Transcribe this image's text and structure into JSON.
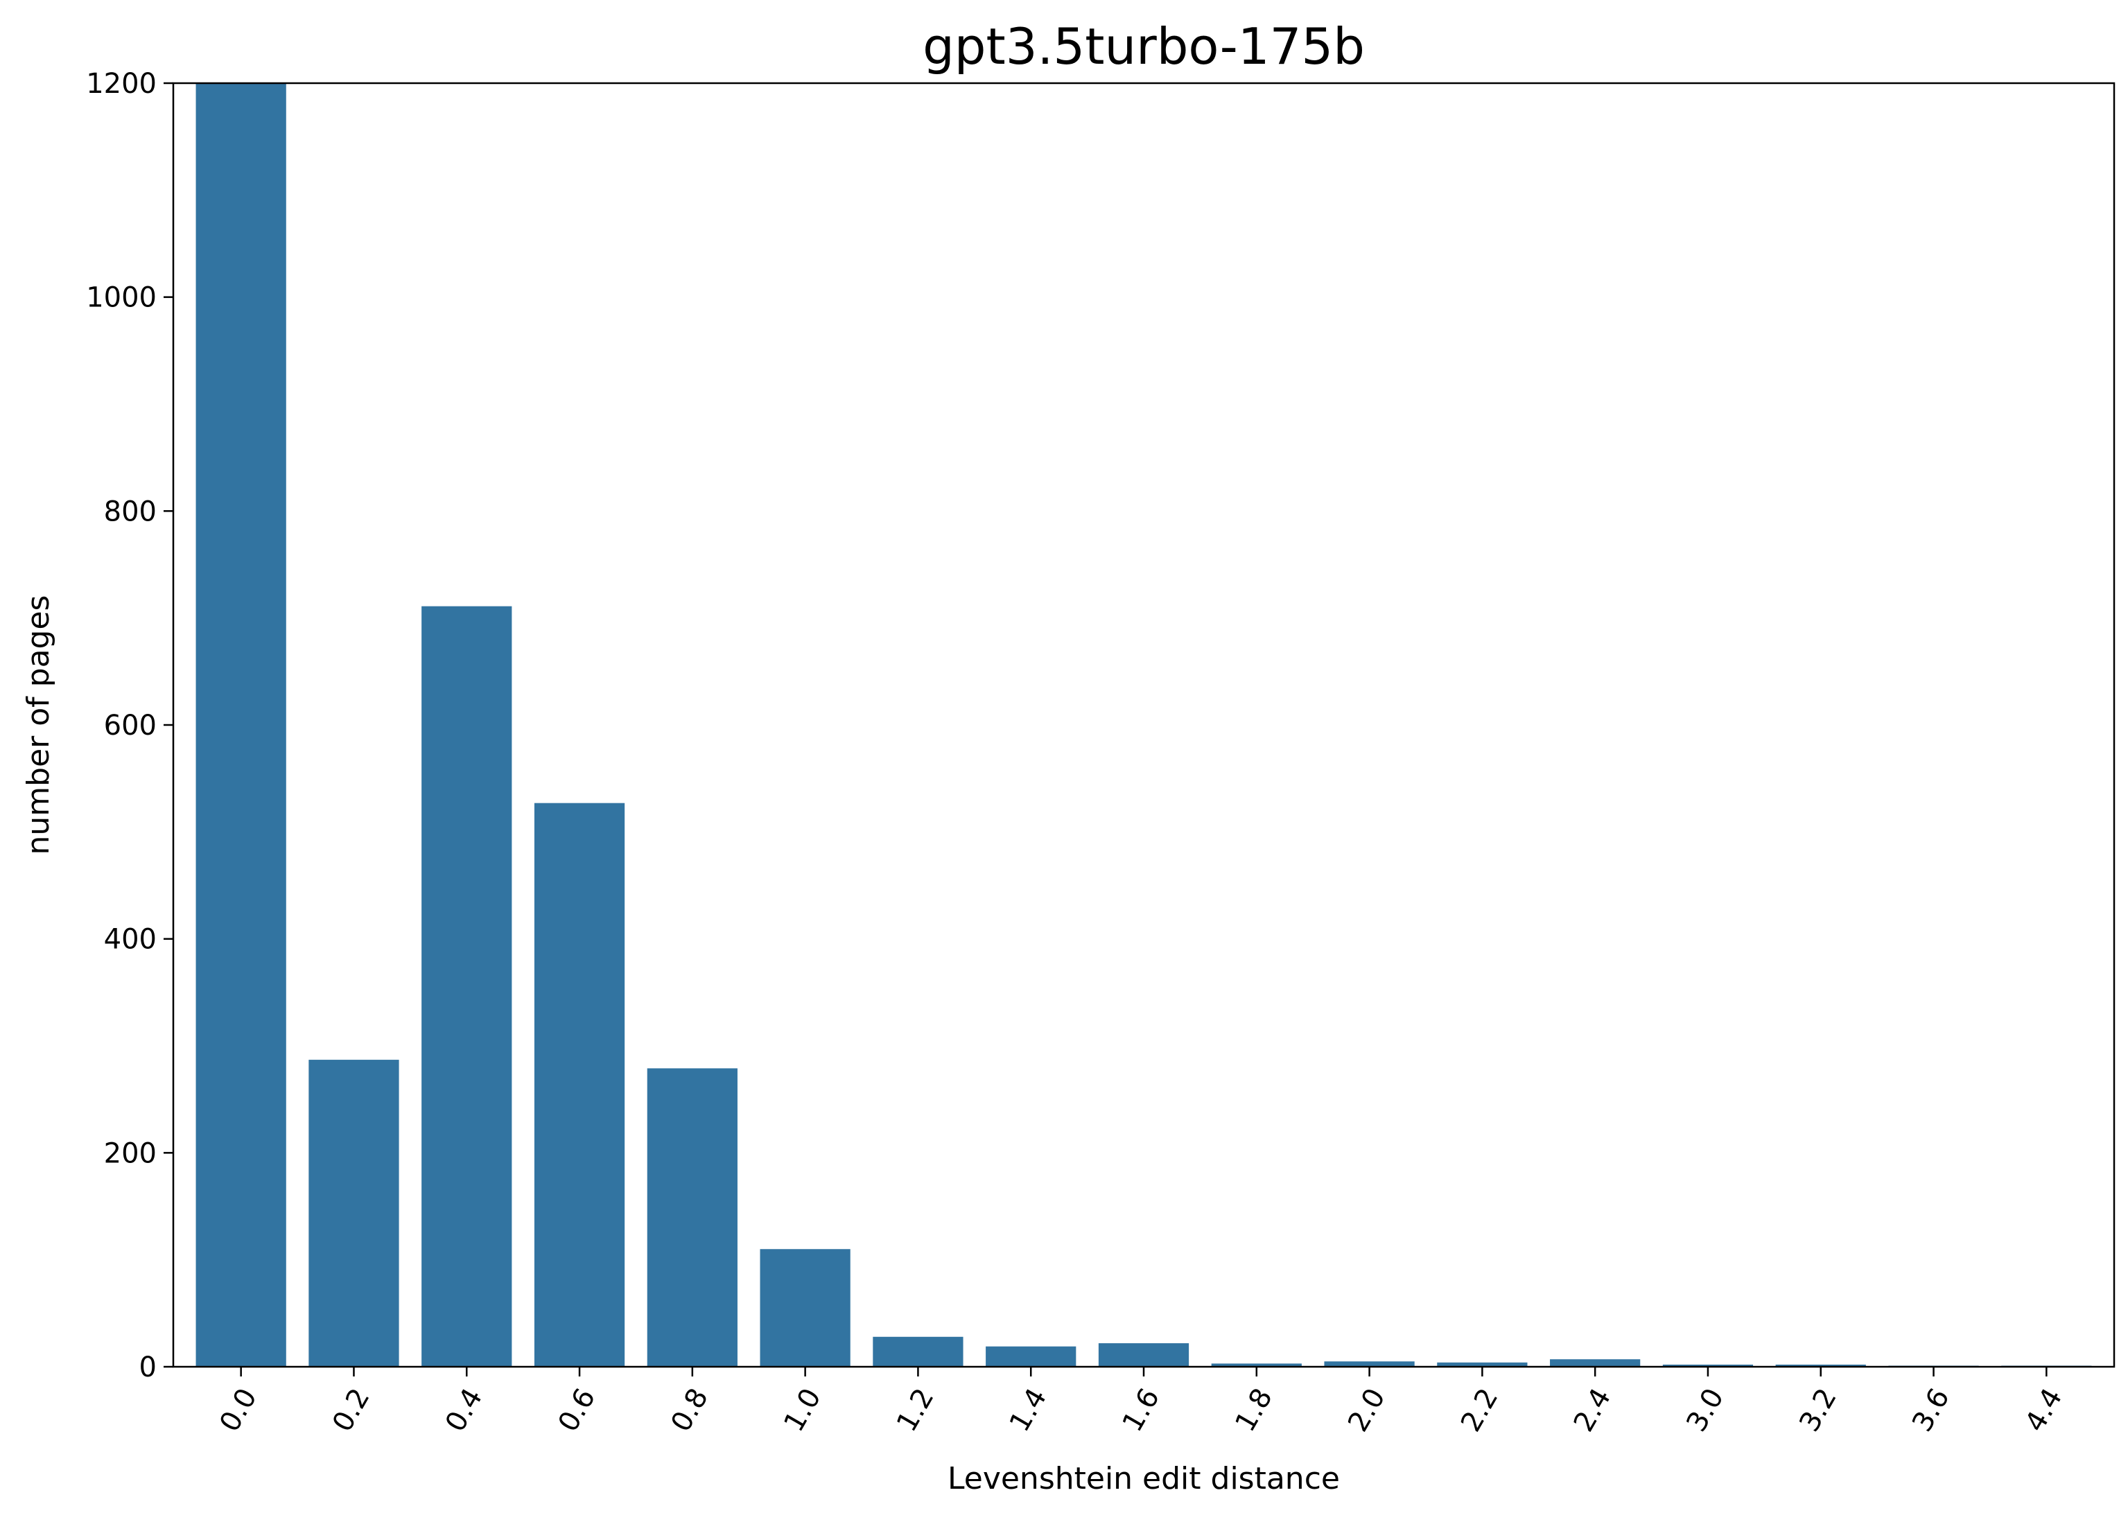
{
  "chart_data": {
    "type": "bar",
    "title": "gpt3.5turbo-175b",
    "xlabel": "Levenshtein edit distance",
    "ylabel": "number of pages",
    "categories": [
      "0.0",
      "0.2",
      "0.4",
      "0.6",
      "0.8",
      "1.0",
      "1.2",
      "1.4",
      "1.6",
      "1.8",
      "2.0",
      "2.2",
      "2.4",
      "3.0",
      "3.2",
      "3.6",
      "4.4"
    ],
    "values": [
      1200,
      287,
      711,
      527,
      279,
      110,
      28,
      19,
      22,
      3,
      5,
      4,
      7,
      2,
      2,
      1,
      1
    ],
    "ylim": [
      0,
      1200
    ],
    "yticks": [
      0,
      200,
      400,
      600,
      800,
      1000,
      1200
    ],
    "grid": false,
    "legend": "none",
    "bar_color": "#3274a1"
  }
}
